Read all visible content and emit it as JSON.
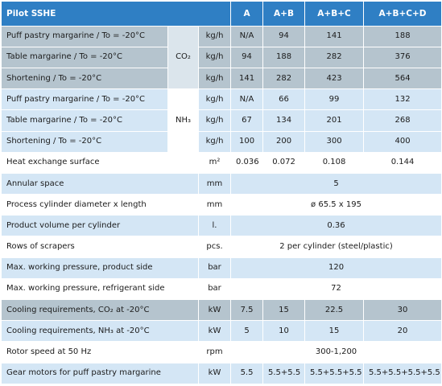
{
  "header": {
    "title": "Pilot SSHE",
    "cols": [
      "A",
      "A+B",
      "A+B+C",
      "A+B+C+D"
    ]
  },
  "co2_label": "CO₂",
  "nh3_label": "NH₃",
  "co2_rows": [
    {
      "label": "Puff pastry margarine / To = -20°C",
      "unit": "kg/h",
      "vals": [
        "N/A",
        "94",
        "141",
        "188"
      ]
    },
    {
      "label": "Table margarine / To = -20°C",
      "unit": "kg/h",
      "vals": [
        "94",
        "188",
        "282",
        "376"
      ]
    },
    {
      "label": "Shortening / To = -20°C",
      "unit": "kg/h",
      "vals": [
        "141",
        "282",
        "423",
        "564"
      ]
    }
  ],
  "nh3_rows": [
    {
      "label": "Puff pastry margarine / To = -20°C",
      "unit": "kg/h",
      "vals": [
        "N/A",
        "66",
        "99",
        "132"
      ]
    },
    {
      "label": "Table margarine / To = -20°C",
      "unit": "kg/h",
      "vals": [
        "67",
        "134",
        "201",
        "268"
      ]
    },
    {
      "label": "Shortening / To = -20°C",
      "unit": "kg/h",
      "vals": [
        "100",
        "200",
        "300",
        "400"
      ]
    }
  ],
  "heat": {
    "label": "Heat exchange surface",
    "unit": "m²",
    "vals": [
      "0.036",
      "0.072",
      "0.108",
      "0.144"
    ]
  },
  "spanned": [
    {
      "label": "Annular space",
      "unit": "mm",
      "value": "5"
    },
    {
      "label": "Process cylinder diameter x length",
      "unit": "mm",
      "value": "ø 65.5 x 195"
    },
    {
      "label": "Product volume per cylinder",
      "unit": "l.",
      "value": "0.36"
    },
    {
      "label": "Rows of scrapers",
      "unit": "pcs.",
      "value": "2 per cylinder (steel/plastic)"
    },
    {
      "label": "Max. working pressure, product side",
      "unit": "bar",
      "value": "120"
    },
    {
      "label": "Max. working pressure, refrigerant side",
      "unit": "bar",
      "value": "72"
    }
  ],
  "cooling": [
    {
      "label": "Cooling requirements, CO₂ at -20°C",
      "unit": "kW",
      "vals": [
        "7.5",
        "15",
        "22.5",
        "30"
      ]
    },
    {
      "label": "Cooling requirements, NH₃ at -20°C",
      "unit": "kW",
      "vals": [
        "5",
        "10",
        "15",
        "20"
      ]
    }
  ],
  "rotor": {
    "label": "Rotor speed at 50 Hz",
    "unit": "rpm",
    "value": "300-1,200"
  },
  "gear": {
    "label": "Gear motors for puff pastry margarine",
    "unit": "kW",
    "vals": [
      "5.5",
      "5.5+5.5",
      "5.5+5.5+5.5",
      "5.5+5.5+5.5+5.5"
    ]
  }
}
